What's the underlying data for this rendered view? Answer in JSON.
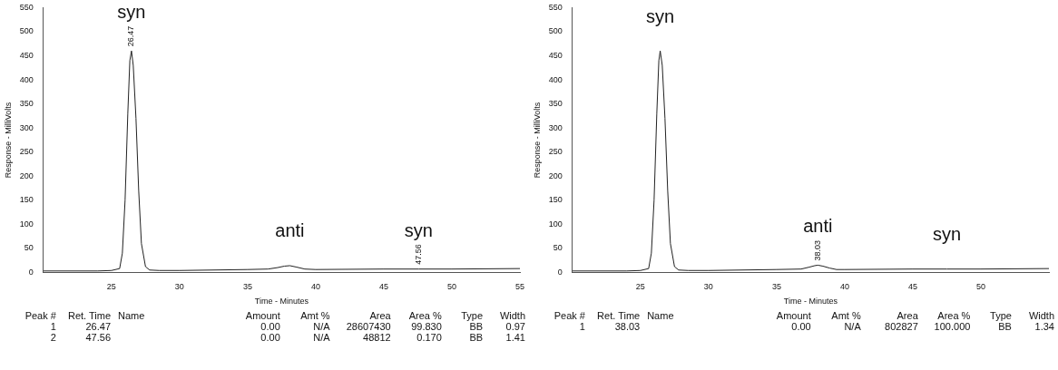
{
  "chart_data": [
    {
      "type": "line",
      "xlabel": "Time - Minutes",
      "ylabel": "Response - MilliVolts",
      "xlim": [
        20,
        55
      ],
      "xticks": [
        25,
        30,
        35,
        40,
        45,
        50,
        55
      ],
      "ylim": [
        0,
        550
      ],
      "yticks": [
        0,
        50,
        100,
        150,
        200,
        250,
        300,
        350,
        400,
        450,
        500,
        550
      ],
      "grid": false,
      "legend": false,
      "series": [
        {
          "color": "#222222",
          "x": [
            20,
            24,
            25,
            25.6,
            25.8,
            26,
            26.2,
            26.35,
            26.47,
            26.6,
            26.8,
            27,
            27.2,
            27.5,
            27.8,
            28.5,
            30,
            35,
            36.5,
            37.2,
            37.7,
            38.1,
            38.6,
            39.2,
            40,
            45,
            47.56,
            50,
            55
          ],
          "values": [
            3,
            3,
            4,
            8,
            40,
            150,
            330,
            440,
            460,
            430,
            320,
            170,
            60,
            12,
            5,
            4,
            4,
            6,
            7,
            10,
            13,
            14,
            11,
            7,
            6,
            7,
            7,
            7,
            8
          ]
        }
      ],
      "annotations": [
        {
          "text": "26.47",
          "x": 26.47,
          "y": 460
        },
        {
          "text": "syn",
          "x": 26.47,
          "y": 460
        },
        {
          "text": "anti",
          "x": 38.1,
          "y": 14
        },
        {
          "text": "47.56",
          "x": 47.56,
          "y": 7
        },
        {
          "text": "syn",
          "x": 47.56,
          "y": 7
        },
        "Peak #\tRet. Time\tName\tAmount\tAmt %\tArea\tArea %\tType\tWidth",
        "1\t26.47\t\t0.00\tN/A\t28607430\t99.830\tBB\t0.97",
        "2\t47.56\t\t0.00\tN/A\t48812\t0.170\tBB\t1.41"
      ]
    },
    {
      "type": "line",
      "xlabel": "Time - Minutes",
      "ylabel": "Response - MilliVolts",
      "xlim": [
        20,
        55
      ],
      "xticks": [
        25,
        30,
        35,
        40,
        45,
        50
      ],
      "ylim": [
        0,
        550
      ],
      "yticks": [
        0,
        50,
        100,
        150,
        200,
        250,
        300,
        350,
        400,
        450,
        500,
        550
      ],
      "grid": false,
      "legend": false,
      "series": [
        {
          "color": "#222222",
          "x": [
            20,
            24,
            25,
            25.6,
            25.8,
            26,
            26.2,
            26.35,
            26.45,
            26.6,
            26.8,
            27,
            27.2,
            27.5,
            27.8,
            28.5,
            30,
            35,
            36.8,
            37.4,
            37.8,
            38.03,
            38.4,
            38.9,
            39.4,
            40,
            45,
            47.5,
            50,
            55
          ],
          "values": [
            3,
            3,
            4,
            8,
            40,
            150,
            330,
            440,
            460,
            430,
            320,
            170,
            60,
            12,
            5,
            4,
            4,
            6,
            7,
            11,
            14,
            15,
            13,
            9,
            6,
            6,
            7,
            7,
            7,
            8
          ]
        }
      ],
      "annotations": [
        {
          "text": "syn",
          "x": 26.45,
          "y": 460
        },
        {
          "text": "38.03",
          "x": 38.03,
          "y": 15
        },
        {
          "text": "anti",
          "x": 38.03,
          "y": 15
        },
        {
          "text": "syn",
          "x": 47.5,
          "y": 7
        },
        "Peak #\tRet. Time\tName\tAmount\tAmt %\tArea\tArea %\tType\tWidth",
        "1\t38.03\t\t0.00\tN/A\t802827\t100.000\tBB\t1.34"
      ]
    }
  ]
}
